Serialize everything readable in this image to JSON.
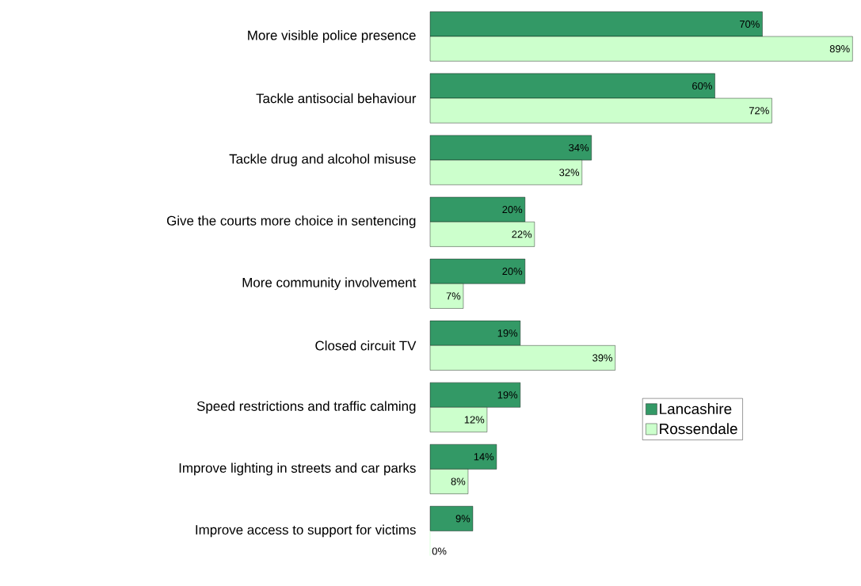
{
  "chart_data": {
    "type": "bar",
    "orientation": "horizontal",
    "legend": "right",
    "categories": [
      "More visible police presence",
      "Tackle antisocial behaviour",
      "Tackle drug and alcohol misuse",
      "Give the courts more choice in sentencing",
      "More community involvement",
      "Closed circuit TV",
      "Speed restrictions and traffic calming",
      "Improve lighting in streets and car parks",
      "Improve access to support for victims"
    ],
    "series": [
      {
        "name": "Lancashire",
        "color": "#339966",
        "values": [
          70,
          60,
          34,
          20,
          20,
          19,
          19,
          14,
          9
        ],
        "value_labels": [
          "70%",
          "60%",
          "34%",
          "20%",
          "20%",
          "19%",
          "19%",
          "14%",
          "9%"
        ]
      },
      {
        "name": "Rossendale",
        "color": "#ccffcc",
        "values": [
          89,
          72,
          32,
          22,
          7,
          39,
          12,
          8,
          0
        ],
        "value_labels": [
          "89%",
          "72%",
          "32%",
          "22%",
          "7%",
          "39%",
          "12%",
          "8%",
          "0%"
        ]
      }
    ]
  }
}
